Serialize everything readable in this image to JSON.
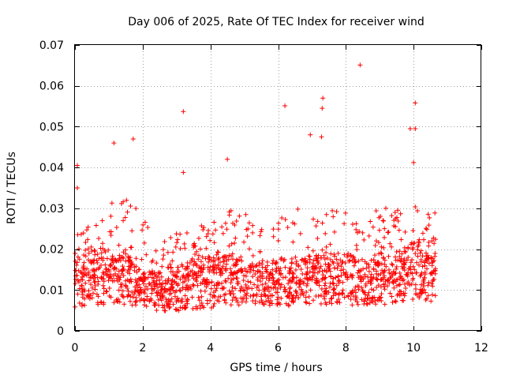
{
  "chart_data": {
    "type": "scatter",
    "title": "Day 006 of 2025, Rate Of TEC Index for receiver wind",
    "xlabel": "GPS time / hours",
    "ylabel": "ROTI / TECUs",
    "xlim": [
      0,
      12
    ],
    "ylim": [
      0,
      0.07
    ],
    "xticks": [
      0,
      2,
      4,
      6,
      8,
      10,
      12
    ],
    "yticks": [
      0,
      0.01,
      0.02,
      0.03,
      0.04,
      0.05,
      0.06,
      0.07
    ],
    "xtick_labels": [
      "0",
      "2",
      "4",
      "6",
      "8",
      "10",
      "12"
    ],
    "ytick_labels": [
      "0",
      "0.01",
      "0.02",
      "0.03",
      "0.04",
      "0.05",
      "0.06",
      "0.07"
    ],
    "grid": true,
    "marker": "+",
    "color": "#ff0000",
    "data_x_range_hours": [
      0,
      10.65
    ],
    "notable_points": [
      {
        "x": 0.07,
        "y": 0.0405
      },
      {
        "x": 0.07,
        "y": 0.035
      },
      {
        "x": 1.15,
        "y": 0.046
      },
      {
        "x": 1.72,
        "y": 0.047
      },
      {
        "x": 3.2,
        "y": 0.0537
      },
      {
        "x": 3.2,
        "y": 0.0388
      },
      {
        "x": 4.5,
        "y": 0.042
      },
      {
        "x": 6.2,
        "y": 0.0551
      },
      {
        "x": 6.95,
        "y": 0.048
      },
      {
        "x": 7.32,
        "y": 0.057
      },
      {
        "x": 7.3,
        "y": 0.0545
      },
      {
        "x": 7.28,
        "y": 0.0475
      },
      {
        "x": 8.42,
        "y": 0.0651
      },
      {
        "x": 9.9,
        "y": 0.0495
      },
      {
        "x": 10.05,
        "y": 0.0558
      },
      {
        "x": 10.05,
        "y": 0.0495
      },
      {
        "x": 10.0,
        "y": 0.0412
      }
    ],
    "envelope": [
      {
        "x": 0.0,
        "low": 0.0035,
        "mid": 0.011,
        "high": 0.024
      },
      {
        "x": 0.5,
        "low": 0.0035,
        "mid": 0.012,
        "high": 0.028
      },
      {
        "x": 1.0,
        "low": 0.004,
        "mid": 0.013,
        "high": 0.032
      },
      {
        "x": 1.5,
        "low": 0.004,
        "mid": 0.012,
        "high": 0.034
      },
      {
        "x": 2.0,
        "low": 0.004,
        "mid": 0.01,
        "high": 0.028
      },
      {
        "x": 2.5,
        "low": 0.003,
        "mid": 0.009,
        "high": 0.022
      },
      {
        "x": 3.0,
        "low": 0.0025,
        "mid": 0.01,
        "high": 0.024
      },
      {
        "x": 3.5,
        "low": 0.003,
        "mid": 0.011,
        "high": 0.026
      },
      {
        "x": 4.0,
        "low": 0.003,
        "mid": 0.011,
        "high": 0.026
      },
      {
        "x": 4.5,
        "low": 0.004,
        "mid": 0.012,
        "high": 0.03
      },
      {
        "x": 5.0,
        "low": 0.004,
        "mid": 0.011,
        "high": 0.03
      },
      {
        "x": 5.5,
        "low": 0.004,
        "mid": 0.011,
        "high": 0.028
      },
      {
        "x": 6.0,
        "low": 0.004,
        "mid": 0.011,
        "high": 0.028
      },
      {
        "x": 6.5,
        "low": 0.004,
        "mid": 0.011,
        "high": 0.03
      },
      {
        "x": 7.0,
        "low": 0.004,
        "mid": 0.012,
        "high": 0.032
      },
      {
        "x": 7.5,
        "low": 0.004,
        "mid": 0.011,
        "high": 0.03
      },
      {
        "x": 8.0,
        "low": 0.004,
        "mid": 0.012,
        "high": 0.03
      },
      {
        "x": 8.5,
        "low": 0.004,
        "mid": 0.011,
        "high": 0.028
      },
      {
        "x": 9.0,
        "low": 0.004,
        "mid": 0.012,
        "high": 0.03
      },
      {
        "x": 9.5,
        "low": 0.004,
        "mid": 0.012,
        "high": 0.032
      },
      {
        "x": 10.0,
        "low": 0.005,
        "mid": 0.014,
        "high": 0.034
      },
      {
        "x": 10.65,
        "low": 0.005,
        "mid": 0.012,
        "high": 0.03
      }
    ],
    "sample_count": 1700
  }
}
